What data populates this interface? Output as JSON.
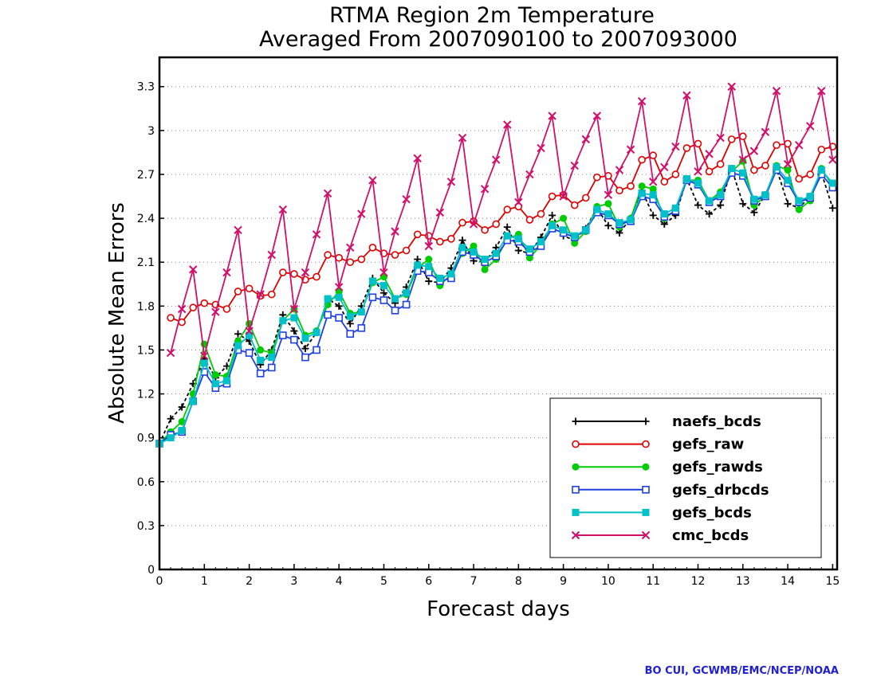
{
  "chart_data": {
    "type": "line",
    "title": "RTMA Region 2m Temperature",
    "subtitle": "Averaged From 2007090100 to 2007093000",
    "xlabel": "Forecast days",
    "ylabel": "Absolute Mean Errors",
    "xlim": [
      0,
      15.1
    ],
    "ylim": [
      0,
      3.5
    ],
    "xticks": [
      "0",
      "1",
      "2",
      "3",
      "4",
      "5",
      "6",
      "7",
      "8",
      "9",
      "10",
      "11",
      "12",
      "13",
      "14",
      "15"
    ],
    "yticks": [
      "0",
      "0.3",
      "0.6",
      "0.9",
      "1.2",
      "1.5",
      "1.8",
      "2.1",
      "2.4",
      "2.7",
      "3",
      "3.3"
    ],
    "grid": true,
    "legend_position": "bottom-right",
    "x": [
      0,
      0.25,
      0.5,
      0.75,
      1,
      1.25,
      1.5,
      1.75,
      2,
      2.25,
      2.5,
      2.75,
      3,
      3.25,
      3.5,
      3.75,
      4,
      4.25,
      4.5,
      4.75,
      5,
      5.25,
      5.5,
      5.75,
      6,
      6.25,
      6.5,
      6.75,
      7,
      7.25,
      7.5,
      7.75,
      8,
      8.25,
      8.5,
      8.75,
      9,
      9.25,
      9.5,
      9.75,
      10,
      10.25,
      10.5,
      10.75,
      11,
      11.25,
      11.5,
      11.75,
      12,
      12.25,
      12.5,
      12.75,
      13,
      13.25,
      13.5,
      13.75,
      14,
      14.25,
      14.5,
      14.75,
      15
    ],
    "series": [
      {
        "name": "naefs_bcds",
        "color": "#000000",
        "marker": "plus",
        "dashed": true,
        "values": [
          0.86,
          1.03,
          1.11,
          1.27,
          1.44,
          1.31,
          1.39,
          1.61,
          1.56,
          1.4,
          1.5,
          1.74,
          1.63,
          1.51,
          1.62,
          1.85,
          1.8,
          1.68,
          1.8,
          1.99,
          1.89,
          1.82,
          1.93,
          2.12,
          1.97,
          1.96,
          2.06,
          2.25,
          2.11,
          2.1,
          2.2,
          2.34,
          2.18,
          2.16,
          2.27,
          2.42,
          2.28,
          2.25,
          2.33,
          2.47,
          2.35,
          2.3,
          2.4,
          2.59,
          2.42,
          2.36,
          2.42,
          2.67,
          2.49,
          2.43,
          2.49,
          2.74,
          2.5,
          2.44,
          2.56,
          2.74,
          2.5,
          2.47,
          2.55,
          2.71,
          2.47
        ]
      },
      {
        "name": "gefs_raw",
        "color": "#e00000",
        "marker": "circle",
        "dashed": false,
        "values": [
          null,
          1.72,
          1.69,
          1.79,
          1.82,
          1.81,
          1.78,
          1.9,
          1.92,
          1.87,
          1.88,
          2.03,
          2.02,
          1.98,
          2.0,
          2.15,
          2.13,
          2.1,
          2.12,
          2.2,
          2.16,
          2.15,
          2.18,
          2.29,
          2.28,
          2.24,
          2.26,
          2.37,
          2.38,
          2.32,
          2.36,
          2.46,
          2.48,
          2.39,
          2.43,
          2.55,
          2.56,
          2.49,
          2.54,
          2.68,
          2.69,
          2.59,
          2.62,
          2.8,
          2.83,
          2.65,
          2.7,
          2.88,
          2.91,
          2.72,
          2.77,
          2.94,
          2.96,
          2.73,
          2.76,
          2.9,
          2.91,
          2.67,
          2.7,
          2.87,
          2.89
        ]
      },
      {
        "name": "gefs_rawds",
        "color": "#00cc00",
        "marker": "filled-circle",
        "dashed": false,
        "values": [
          0.86,
          0.94,
          1.01,
          1.2,
          1.54,
          1.33,
          1.32,
          1.56,
          1.68,
          1.5,
          1.48,
          1.7,
          1.78,
          1.6,
          1.63,
          1.81,
          1.9,
          1.75,
          1.76,
          1.96,
          2.0,
          1.85,
          1.88,
          2.06,
          2.12,
          1.94,
          2.02,
          2.16,
          2.21,
          2.05,
          2.12,
          2.26,
          2.29,
          2.13,
          2.22,
          2.36,
          2.4,
          2.23,
          2.31,
          2.48,
          2.5,
          2.34,
          2.4,
          2.62,
          2.6,
          2.4,
          2.45,
          2.66,
          2.66,
          2.52,
          2.58,
          2.72,
          2.79,
          2.49,
          2.55,
          2.76,
          2.73,
          2.46,
          2.52,
          2.74,
          2.62
        ]
      },
      {
        "name": "gefs_drbcds",
        "color": "#1f3fe0",
        "marker": "square",
        "dashed": false,
        "values": [
          0.86,
          0.92,
          0.94,
          1.15,
          1.35,
          1.24,
          1.27,
          1.5,
          1.48,
          1.34,
          1.38,
          1.6,
          1.57,
          1.45,
          1.5,
          1.74,
          1.72,
          1.61,
          1.65,
          1.86,
          1.84,
          1.77,
          1.81,
          2.04,
          2.03,
          1.97,
          1.99,
          2.17,
          2.15,
          2.1,
          2.14,
          2.25,
          2.24,
          2.17,
          2.21,
          2.33,
          2.3,
          2.27,
          2.32,
          2.44,
          2.42,
          2.36,
          2.38,
          2.55,
          2.53,
          2.41,
          2.45,
          2.66,
          2.63,
          2.51,
          2.55,
          2.71,
          2.69,
          2.52,
          2.55,
          2.73,
          2.64,
          2.51,
          2.54,
          2.7,
          2.61
        ]
      },
      {
        "name": "gefs_bcds",
        "color": "#00c0c8",
        "marker": "filled-square",
        "dashed": false,
        "values": [
          0.86,
          0.9,
          0.95,
          1.15,
          1.41,
          1.27,
          1.29,
          1.53,
          1.6,
          1.43,
          1.45,
          1.7,
          1.72,
          1.58,
          1.62,
          1.85,
          1.86,
          1.73,
          1.76,
          1.97,
          1.94,
          1.85,
          1.89,
          2.08,
          2.07,
          1.99,
          2.02,
          2.2,
          2.17,
          2.12,
          2.16,
          2.28,
          2.26,
          2.19,
          2.24,
          2.35,
          2.32,
          2.28,
          2.32,
          2.46,
          2.43,
          2.37,
          2.39,
          2.57,
          2.56,
          2.43,
          2.47,
          2.67,
          2.64,
          2.52,
          2.56,
          2.74,
          2.71,
          2.53,
          2.56,
          2.75,
          2.66,
          2.52,
          2.55,
          2.73,
          2.64
        ]
      },
      {
        "name": "cmc_bcds",
        "color": "#d0106a",
        "marker": "x",
        "dashed": false,
        "values": [
          null,
          1.48,
          1.78,
          2.05,
          1.46,
          1.76,
          2.03,
          2.32,
          1.63,
          1.88,
          2.15,
          2.46,
          1.78,
          2.03,
          2.29,
          2.57,
          1.93,
          2.2,
          2.43,
          2.66,
          2.03,
          2.31,
          2.53,
          2.81,
          2.21,
          2.44,
          2.65,
          2.95,
          2.36,
          2.6,
          2.8,
          3.04,
          2.51,
          2.7,
          2.88,
          3.1,
          2.55,
          2.76,
          2.94,
          3.1,
          2.56,
          2.73,
          2.87,
          3.2,
          2.65,
          2.75,
          2.89,
          3.24,
          2.72,
          2.84,
          2.95,
          3.3,
          2.8,
          2.86,
          2.99,
          3.27,
          2.77,
          2.9,
          3.03,
          3.27,
          2.8
        ]
      }
    ]
  },
  "credit": "BO CUI, GCWMB/EMC/NCEP/NOAA",
  "credit_color": "#2020d0"
}
